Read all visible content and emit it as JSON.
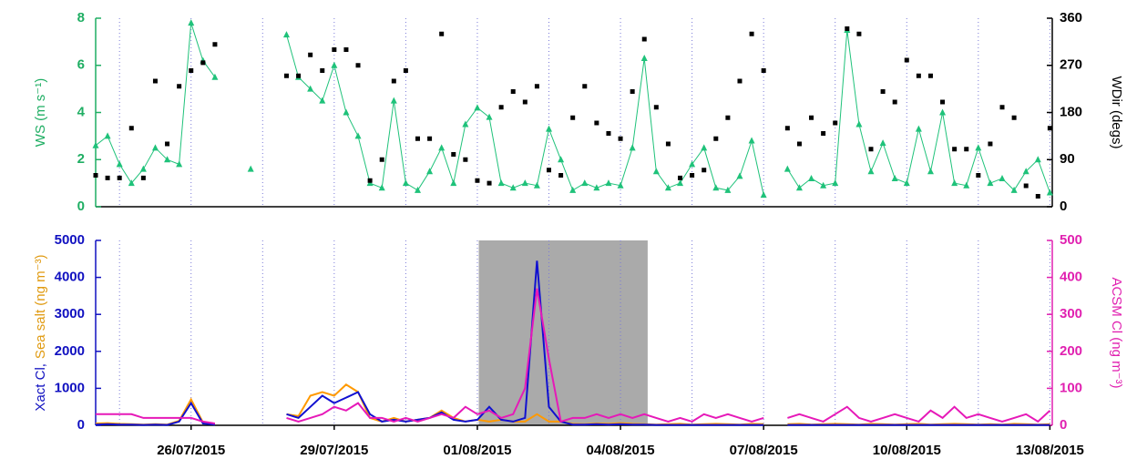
{
  "chart_data": [
    {
      "type": "line",
      "ylabel": "WS (m s⁻¹)",
      "y2label": "WDir (degs)",
      "ylabel_color": "#1fae63",
      "y2label_color": "#000000",
      "xlim": [
        0,
        20.05
      ],
      "xgrid": [
        0.5,
        2,
        3.5,
        5,
        6.5,
        8,
        9.5,
        11,
        12.5,
        14,
        15.5,
        17,
        18.5,
        20
      ],
      "ylim": [
        0,
        8
      ],
      "yticks": [
        0,
        2,
        4,
        6,
        8
      ],
      "y2lim": [
        0,
        360
      ],
      "y2ticks": [
        0,
        90,
        180,
        270,
        360
      ],
      "x": [
        0,
        0.25,
        0.5,
        0.75,
        1,
        1.25,
        1.5,
        1.75,
        2,
        2.25,
        2.5,
        2.75,
        3,
        3.25,
        3.5,
        3.75,
        4,
        4.25,
        4.5,
        4.75,
        5,
        5.25,
        5.5,
        5.75,
        6,
        6.25,
        6.5,
        6.75,
        7,
        7.25,
        7.5,
        7.75,
        8,
        8.25,
        8.5,
        8.75,
        9,
        9.25,
        9.5,
        9.75,
        10,
        10.25,
        10.5,
        10.75,
        11,
        11.25,
        11.5,
        11.75,
        12,
        12.25,
        12.5,
        12.75,
        13,
        13.25,
        13.5,
        13.75,
        14,
        14.25,
        14.5,
        14.75,
        15,
        15.25,
        15.5,
        15.75,
        16,
        16.25,
        16.5,
        16.75,
        17,
        17.25,
        17.5,
        17.75,
        18,
        18.25,
        18.5,
        18.75,
        19,
        19.25,
        19.5,
        19.75,
        20
      ],
      "series": [
        {
          "color": "#1fc27a",
          "marker": "triangle",
          "line": true,
          "values": [
            2.6,
            3.0,
            1.8,
            1.0,
            1.6,
            2.5,
            2.0,
            1.8,
            7.8,
            6.2,
            5.5,
            null,
            null,
            1.6,
            null,
            null,
            7.3,
            5.5,
            5.0,
            4.5,
            6.0,
            4.0,
            3.0,
            1.0,
            0.8,
            4.5,
            1.0,
            0.7,
            1.5,
            2.5,
            1.0,
            3.5,
            4.2,
            3.8,
            1.0,
            0.8,
            1.0,
            0.9,
            3.3,
            2.0,
            0.7,
            1.0,
            0.8,
            1.0,
            0.9,
            2.5,
            6.3,
            1.5,
            0.8,
            1.0,
            1.8,
            2.5,
            0.8,
            0.7,
            1.3,
            2.8,
            0.5,
            null,
            1.6,
            0.8,
            1.2,
            0.9,
            1.0,
            7.5,
            3.5,
            1.5,
            2.7,
            1.2,
            1.0,
            3.3,
            1.5,
            4.0,
            1.0,
            0.9,
            2.5,
            1.0,
            1.2,
            0.7,
            1.5,
            2.0,
            0.6
          ]
        },
        {
          "color": "#000000",
          "marker": "square",
          "line": false,
          "axis": "y2",
          "values": [
            60,
            55,
            55,
            150,
            55,
            240,
            120,
            230,
            260,
            275,
            310,
            null,
            null,
            null,
            null,
            null,
            250,
            250,
            290,
            260,
            300,
            300,
            270,
            50,
            90,
            240,
            260,
            130,
            130,
            330,
            100,
            90,
            50,
            45,
            190,
            220,
            200,
            230,
            70,
            60,
            170,
            230,
            160,
            140,
            130,
            220,
            320,
            190,
            120,
            55,
            60,
            70,
            130,
            170,
            240,
            330,
            260,
            null,
            150,
            120,
            170,
            140,
            160,
            340,
            330,
            110,
            220,
            200,
            280,
            250,
            250,
            200,
            110,
            110,
            60,
            120,
            190,
            170,
            40,
            20,
            150
          ]
        }
      ]
    },
    {
      "type": "line",
      "ylabel": [
        "Xact Cl,",
        "Sea salt (ng m⁻³)"
      ],
      "y2label": "ACSM Cl (ng m⁻³)",
      "ylabel_color": [
        "#1010c0",
        "#e09a10"
      ],
      "y2label_color": "#e020b0",
      "shaded_region": {
        "x": [
          8.03,
          11.57
        ],
        "color": "#aaaaaa"
      },
      "xlim": [
        0,
        20.05
      ],
      "xgrid": [
        0.5,
        2,
        3.5,
        5,
        6.5,
        8,
        9.5,
        11,
        12.5,
        14,
        15.5,
        17,
        18.5,
        20
      ],
      "xticks": [
        {
          "value": 2,
          "label": "26/07/2015"
        },
        {
          "value": 5,
          "label": "29/07/2015"
        },
        {
          "value": 8,
          "label": "01/08/2015"
        },
        {
          "value": 11,
          "label": "04/08/2015"
        },
        {
          "value": 14,
          "label": "07/08/2015"
        },
        {
          "value": 17,
          "label": "10/08/2015"
        },
        {
          "value": 20,
          "label": "13/08/2015"
        }
      ],
      "ylim": [
        0,
        5000
      ],
      "yticks": [
        0,
        1000,
        2000,
        3000,
        4000,
        5000
      ],
      "y2lim": [
        0,
        500
      ],
      "y2ticks": [
        0,
        100,
        200,
        300,
        400,
        500
      ],
      "x": [
        0,
        0.25,
        0.5,
        0.75,
        1,
        1.25,
        1.5,
        1.75,
        2,
        2.25,
        2.5,
        2.75,
        3,
        3.25,
        3.5,
        3.75,
        4,
        4.25,
        4.5,
        4.75,
        5,
        5.25,
        5.5,
        5.75,
        6,
        6.25,
        6.5,
        6.75,
        7,
        7.25,
        7.5,
        7.75,
        8,
        8.25,
        8.5,
        8.75,
        9,
        9.25,
        9.5,
        9.75,
        10,
        10.25,
        10.5,
        10.75,
        11,
        11.25,
        11.5,
        11.75,
        12,
        12.25,
        12.5,
        12.75,
        13,
        13.25,
        13.5,
        13.75,
        14,
        14.25,
        14.5,
        14.75,
        15,
        15.25,
        15.5,
        15.75,
        16,
        16.25,
        16.5,
        16.75,
        17,
        17.25,
        17.5,
        17.75,
        18,
        18.25,
        18.5,
        18.75,
        19,
        19.25,
        19.5,
        19.75,
        20
      ],
      "series": [
        {
          "color": "#ff9900",
          "line": true,
          "values": [
            50,
            60,
            40,
            30,
            20,
            30,
            20,
            120,
            700,
            80,
            40,
            null,
            null,
            null,
            null,
            null,
            300,
            250,
            800,
            900,
            800,
            1100,
            900,
            200,
            100,
            200,
            100,
            150,
            200,
            400,
            200,
            100,
            150,
            100,
            150,
            100,
            100,
            300,
            100,
            100,
            40,
            30,
            50,
            40,
            60,
            40,
            30,
            20,
            30,
            40,
            20,
            30,
            40,
            30,
            20,
            40,
            30,
            null,
            30,
            40,
            20,
            30,
            40,
            30,
            20,
            40,
            30,
            20,
            30,
            40,
            20,
            30,
            40,
            30,
            20,
            30,
            20,
            40,
            30,
            20,
            30
          ]
        },
        {
          "color": "#1010d0",
          "line": true,
          "values": [
            20,
            30,
            20,
            20,
            10,
            20,
            10,
            100,
            600,
            50,
            20,
            null,
            null,
            null,
            null,
            null,
            300,
            200,
            500,
            800,
            600,
            750,
            900,
            300,
            100,
            150,
            100,
            150,
            200,
            350,
            150,
            100,
            150,
            500,
            150,
            100,
            200,
            4450,
            500,
            100,
            20,
            20,
            30,
            20,
            30,
            20,
            20,
            10,
            10,
            10,
            10,
            10,
            10,
            10,
            10,
            10,
            10,
            null,
            10,
            10,
            10,
            10,
            10,
            10,
            10,
            10,
            10,
            10,
            10,
            10,
            10,
            10,
            10,
            10,
            10,
            10,
            10,
            10,
            10,
            10,
            10
          ]
        },
        {
          "color": "#e619b8",
          "line": true,
          "axis": "y2",
          "values": [
            30,
            30,
            30,
            30,
            20,
            20,
            20,
            20,
            20,
            10,
            5,
            null,
            null,
            null,
            null,
            null,
            20,
            10,
            20,
            30,
            50,
            40,
            60,
            20,
            20,
            10,
            20,
            10,
            20,
            30,
            20,
            50,
            30,
            40,
            20,
            30,
            100,
            370,
            180,
            10,
            20,
            20,
            30,
            20,
            30,
            20,
            30,
            20,
            10,
            20,
            10,
            30,
            20,
            30,
            20,
            10,
            20,
            null,
            20,
            30,
            20,
            10,
            30,
            50,
            20,
            10,
            20,
            30,
            20,
            10,
            40,
            20,
            50,
            20,
            30,
            20,
            10,
            20,
            30,
            10,
            40
          ]
        }
      ]
    }
  ]
}
